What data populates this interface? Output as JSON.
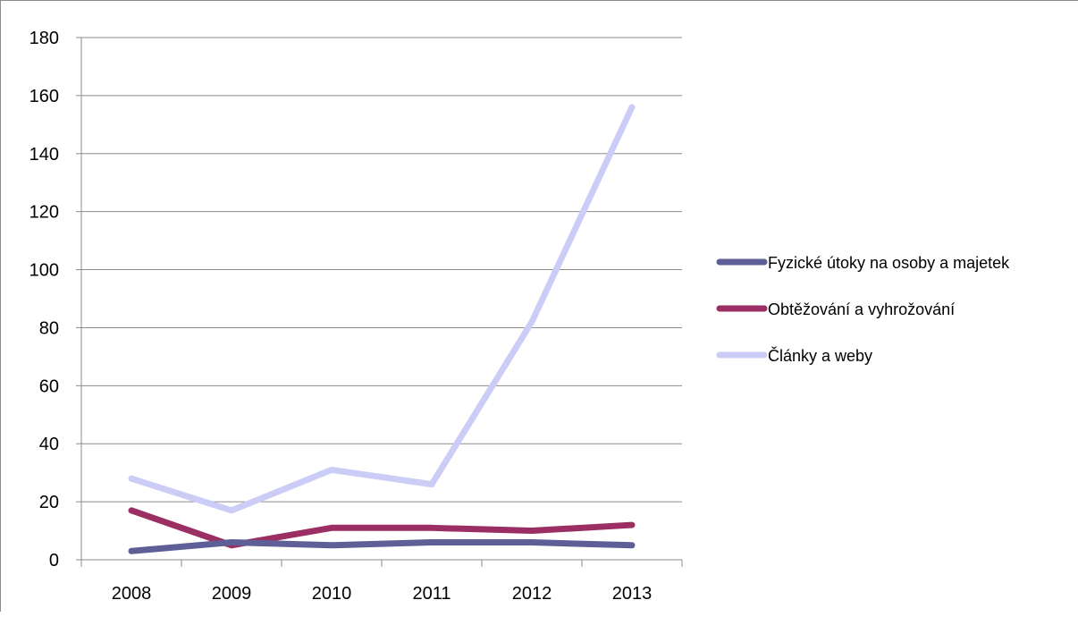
{
  "chart_data": {
    "type": "line",
    "title": "",
    "xlabel": "",
    "ylabel": "",
    "categories": [
      "2008",
      "2009",
      "2010",
      "2011",
      "2012",
      "2013"
    ],
    "ylim": [
      0,
      180
    ],
    "yticks": [
      0,
      20,
      40,
      60,
      80,
      100,
      120,
      140,
      160,
      180
    ],
    "grid": true,
    "legend_position": "right",
    "series": [
      {
        "name": "Fyzické útoky na osoby a majetek",
        "color": "#5d5f96",
        "values": [
          3,
          6,
          5,
          6,
          6,
          5
        ]
      },
      {
        "name": "Obtěžování a vyhrožování",
        "color": "#9b2f63",
        "values": [
          17,
          5,
          11,
          11,
          10,
          12
        ]
      },
      {
        "name": "Články a weby",
        "color": "#cbcdf7",
        "values": [
          28,
          17,
          31,
          26,
          82,
          156
        ]
      }
    ]
  }
}
